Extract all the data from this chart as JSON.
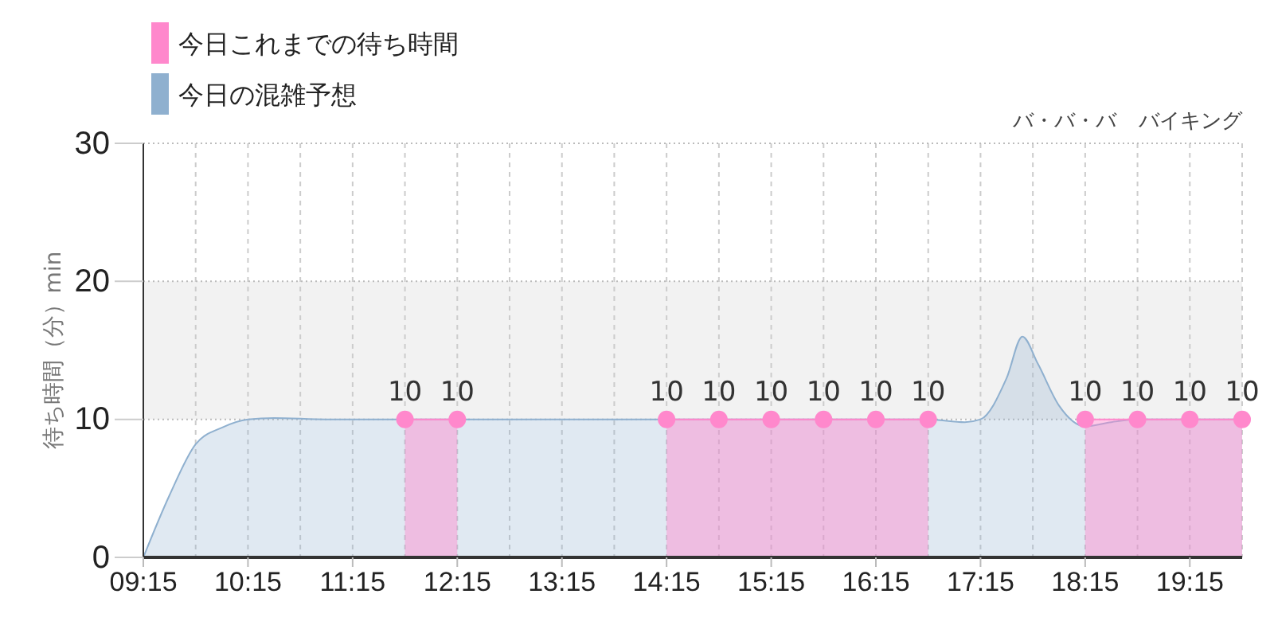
{
  "chart_data": {
    "type": "area",
    "ylabel": "待ち時間（分）min",
    "annotations": [
      "バ・バ・バ",
      "バイキング"
    ],
    "xlim": [
      9.25,
      19.75
    ],
    "xticks": [
      {
        "value": 9.25,
        "label": "09:15"
      },
      {
        "value": 10.25,
        "label": "10:15"
      },
      {
        "value": 11.25,
        "label": "11:15"
      },
      {
        "value": 12.25,
        "label": "12:15"
      },
      {
        "value": 13.25,
        "label": "13:15"
      },
      {
        "value": 14.25,
        "label": "14:15"
      },
      {
        "value": 15.25,
        "label": "15:15"
      },
      {
        "value": 16.25,
        "label": "16:15"
      },
      {
        "value": 17.25,
        "label": "17:15"
      },
      {
        "value": 18.25,
        "label": "18:15"
      },
      {
        "value": 19.25,
        "label": "19:15"
      }
    ],
    "ylim": [
      0,
      30
    ],
    "yticks": [
      0,
      10,
      20,
      30
    ],
    "grid": true,
    "legend": "top left",
    "bands": [
      {
        "axis": "y",
        "from": 10,
        "to": 20,
        "color": "#f2f2f2"
      }
    ],
    "series": [
      {
        "name": "今日の混雑予想",
        "color": "#8fb0cf",
        "x": [
          9.25,
          9.5,
          9.75,
          10.0,
          10.25,
          10.5,
          11.0,
          12.0,
          13.0,
          14.0,
          15.0,
          16.0,
          16.75,
          17.1,
          17.25,
          17.5,
          17.65,
          17.8,
          18.0,
          18.25,
          18.5,
          18.75,
          19.25,
          19.75
        ],
        "values": [
          0,
          4.5,
          8.2,
          9.4,
          10,
          10.1,
          10,
          10,
          10,
          10,
          10,
          10,
          10,
          9.8,
          10,
          13,
          16,
          14,
          11,
          9.5,
          9.8,
          10,
          10,
          10
        ]
      },
      {
        "name": "今日これまでの待ち時間",
        "color": "#ff88cc",
        "marker": "circle",
        "x": [
          11.75,
          12.25,
          12.75,
          13.25,
          13.75,
          14.25,
          14.75,
          15.25,
          15.75,
          16.25,
          16.75,
          17.25,
          17.75,
          18.25,
          18.75,
          19.25,
          19.75
        ],
        "values": [
          10,
          10,
          null,
          null,
          null,
          10,
          10,
          10,
          10,
          10,
          10,
          null,
          null,
          10,
          10,
          10,
          10
        ],
        "value_labels": [
          "10",
          "10",
          null,
          null,
          null,
          "10",
          "10",
          "10",
          "10",
          "10",
          "10",
          null,
          null,
          "10",
          "10",
          "10",
          "10"
        ]
      }
    ]
  }
}
